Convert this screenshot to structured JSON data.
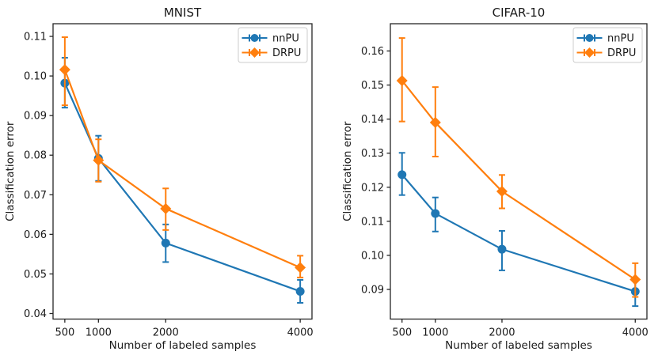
{
  "figure": {
    "background": "#ffffff",
    "text_color": "#1a1a1a",
    "spine_color": "#262626"
  },
  "legend": {
    "entries": [
      "nnPU",
      "DRPU"
    ],
    "position": "upper right",
    "border_color": "#cccccc"
  },
  "colors": {
    "nnPU": "#1f77b4",
    "DRPU": "#ff7f0e"
  },
  "chart_data": [
    {
      "type": "line",
      "title": "MNIST",
      "xlabel": "Number of labeled samples",
      "ylabel": "Classification error",
      "x": [
        500,
        1000,
        2000,
        4000
      ],
      "xticks": [
        500,
        1000,
        2000,
        4000
      ],
      "yticks": [
        0.04,
        0.05,
        0.06,
        0.07,
        0.08,
        0.09,
        0.1,
        0.11
      ],
      "xlim": [
        325,
        4175
      ],
      "ylim": [
        0.0386,
        0.1132
      ],
      "grid": false,
      "legend_position": "upper right",
      "series": [
        {
          "name": "nnPU",
          "color": "#1f77b4",
          "marker": "circle",
          "values": [
            0.0982,
            0.0792,
            0.0578,
            0.0456
          ],
          "err_low": [
            0.092,
            0.0735,
            0.053,
            0.0427
          ],
          "err_high": [
            0.1046,
            0.0849,
            0.0625,
            0.0485
          ]
        },
        {
          "name": "DRPU",
          "color": "#ff7f0e",
          "marker": "diamond",
          "values": [
            0.1016,
            0.0787,
            0.0665,
            0.0516
          ],
          "err_low": [
            0.0926,
            0.0733,
            0.0611,
            0.0491
          ],
          "err_high": [
            0.1098,
            0.084,
            0.0716,
            0.0546
          ]
        }
      ]
    },
    {
      "type": "line",
      "title": "CIFAR-10",
      "xlabel": "Number of labeled samples",
      "ylabel": "Classification error",
      "x": [
        500,
        1000,
        2000,
        4000
      ],
      "xticks": [
        500,
        1000,
        2000,
        4000
      ],
      "yticks": [
        0.09,
        0.1,
        0.11,
        0.12,
        0.13,
        0.14,
        0.15,
        0.16
      ],
      "xlim": [
        325,
        4175
      ],
      "ylim": [
        0.0813,
        0.168
      ],
      "grid": false,
      "legend_position": "upper right",
      "series": [
        {
          "name": "nnPU",
          "color": "#1f77b4",
          "marker": "circle",
          "values": [
            0.1237,
            0.1123,
            0.1018,
            0.0894
          ],
          "err_low": [
            0.1177,
            0.107,
            0.0956,
            0.0851
          ],
          "err_high": [
            0.1301,
            0.117,
            0.1072,
            0.0928
          ]
        },
        {
          "name": "DRPU",
          "color": "#ff7f0e",
          "marker": "diamond",
          "values": [
            0.1513,
            0.139,
            0.1188,
            0.0929
          ],
          "err_low": [
            0.1393,
            0.129,
            0.1138,
            0.0878
          ],
          "err_high": [
            0.1638,
            0.1494,
            0.1236,
            0.0977
          ]
        }
      ]
    }
  ]
}
